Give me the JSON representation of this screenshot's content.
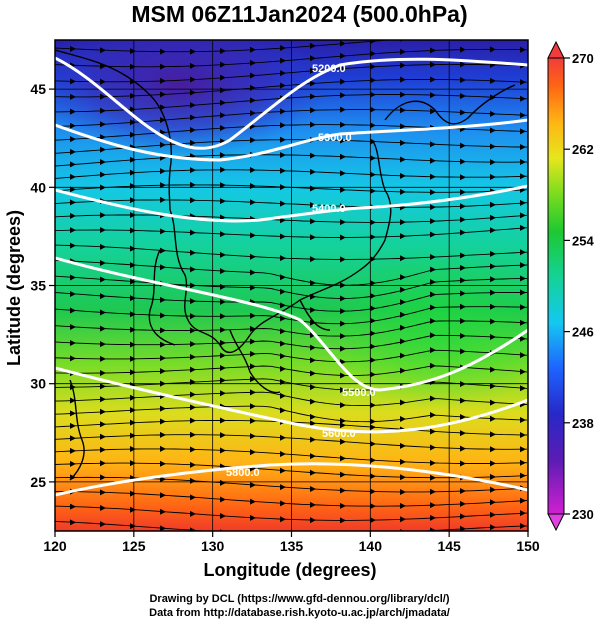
{
  "title": "MSM 06Z11Jan2024 (500.0hPa)",
  "x_axis": {
    "label": "Longitude (degrees)",
    "range": [
      120,
      150
    ],
    "ticks": [
      120,
      125,
      130,
      135,
      140,
      145,
      150
    ]
  },
  "y_axis": {
    "label": "Latitude (degrees)",
    "range": [
      22.5,
      47.5
    ],
    "ticks": [
      25,
      30,
      35,
      40,
      45
    ]
  },
  "colorbar": {
    "range": [
      230,
      270
    ],
    "ticks": [
      230,
      238,
      246,
      254,
      262,
      270
    ]
  },
  "contours": [
    {
      "label": "5200.0"
    },
    {
      "label": "5300.0"
    },
    {
      "label": "5400.0"
    },
    {
      "label": "5500.0"
    },
    {
      "label": "5600.0"
    },
    {
      "label": "5800.0"
    }
  ],
  "credits": [
    "Drawing by DCL (https://www.gfd-dennou.org/library/dcl/)",
    "Data from http://database.rish.kyoto-u.ac.jp/arch/jmadata/"
  ]
}
